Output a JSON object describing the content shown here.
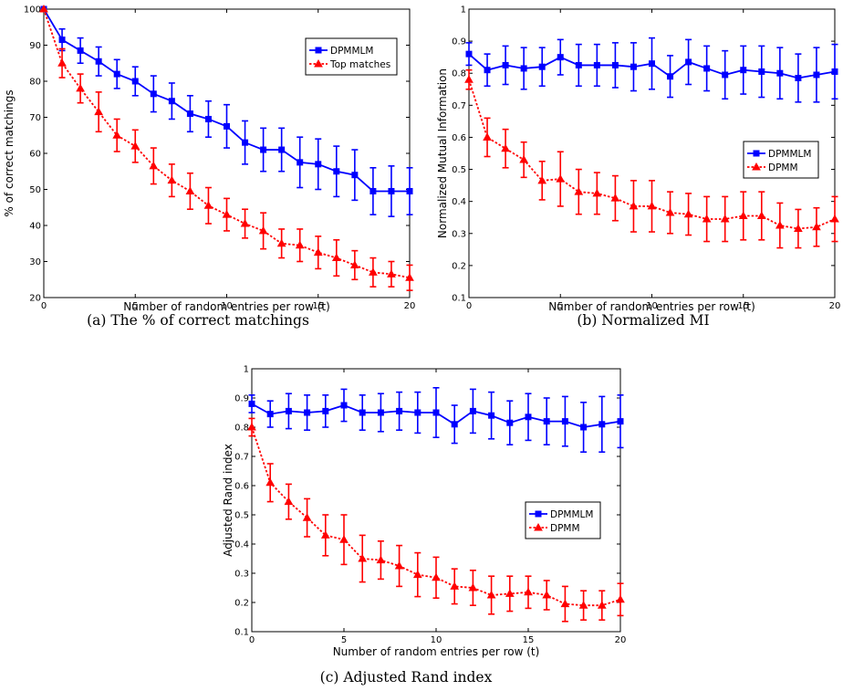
{
  "chart_data": [
    {
      "type": "line",
      "caption": "(a) The % of correct matchings",
      "xlabel": "Number of random entries per row (t)",
      "ylabel": "% of correct matchings",
      "xlim": [
        0,
        20
      ],
      "ylim": [
        20,
        100
      ],
      "xticks": [
        0,
        5,
        10,
        15,
        20
      ],
      "yticks": [
        20,
        30,
        40,
        50,
        60,
        70,
        80,
        90,
        100
      ],
      "legend_position": "top-right",
      "x": [
        0,
        1,
        2,
        3,
        4,
        5,
        6,
        7,
        8,
        9,
        10,
        11,
        12,
        13,
        14,
        15,
        16,
        17,
        18,
        19,
        20
      ],
      "series": [
        {
          "name": "DPMMLM",
          "color": "#0000ff",
          "marker": "square",
          "line": "solid",
          "values": [
            100,
            91.5,
            88.5,
            85.5,
            82,
            80,
            76.5,
            74.5,
            71,
            69.5,
            67.5,
            63,
            61,
            61,
            57.5,
            57,
            55,
            54,
            49.5,
            49.5,
            49.5
          ],
          "errors": [
            0,
            3,
            3.5,
            4,
            4,
            4,
            5,
            5,
            5,
            5,
            6,
            6,
            6,
            6,
            7,
            7,
            7,
            7,
            6.5,
            7,
            6.5
          ]
        },
        {
          "name": "Top matches",
          "color": "#ff0000",
          "marker": "triangle",
          "line": "dotted",
          "values": [
            100,
            85,
            78,
            71.5,
            65,
            62,
            56.5,
            52.5,
            49.5,
            45.5,
            43,
            40.5,
            38.5,
            35,
            34.5,
            32.5,
            31,
            29,
            27,
            26.5,
            25.5
          ],
          "errors": [
            0,
            4,
            4,
            5.5,
            4.5,
            4.5,
            5,
            4.5,
            5,
            5,
            4.5,
            4,
            5,
            4,
            4.5,
            4.5,
            5,
            4,
            4,
            3.5,
            3.5
          ]
        }
      ]
    },
    {
      "type": "line",
      "caption": "(b) Normalized MI",
      "xlabel": "Number of random entries per row (t)",
      "ylabel": "Normalized Mutual Information",
      "xlim": [
        0,
        20
      ],
      "ylim": [
        0.1,
        1
      ],
      "xticks": [
        0,
        5,
        10,
        15,
        20
      ],
      "yticks": [
        0.1,
        0.2,
        0.3,
        0.4,
        0.5,
        0.6,
        0.7,
        0.8,
        0.9,
        1
      ],
      "legend_position": "center-right",
      "x": [
        0,
        1,
        2,
        3,
        4,
        5,
        6,
        7,
        8,
        9,
        10,
        11,
        12,
        13,
        14,
        15,
        16,
        17,
        18,
        19,
        20
      ],
      "series": [
        {
          "name": "DPMMLM",
          "color": "#0000ff",
          "marker": "square",
          "line": "solid",
          "values": [
            0.86,
            0.81,
            0.825,
            0.815,
            0.82,
            0.85,
            0.825,
            0.825,
            0.825,
            0.82,
            0.83,
            0.79,
            0.835,
            0.815,
            0.795,
            0.81,
            0.805,
            0.8,
            0.785,
            0.795,
            0.805
          ],
          "errors": [
            0.035,
            0.05,
            0.06,
            0.065,
            0.06,
            0.055,
            0.065,
            0.065,
            0.07,
            0.075,
            0.08,
            0.065,
            0.07,
            0.07,
            0.075,
            0.075,
            0.08,
            0.08,
            0.075,
            0.085,
            0.085
          ]
        },
        {
          "name": "DPMM",
          "color": "#ff0000",
          "marker": "triangle",
          "line": "dotted",
          "values": [
            0.78,
            0.6,
            0.565,
            0.53,
            0.465,
            0.47,
            0.43,
            0.425,
            0.41,
            0.385,
            0.385,
            0.365,
            0.36,
            0.345,
            0.345,
            0.355,
            0.355,
            0.325,
            0.315,
            0.32,
            0.345
          ],
          "errors": [
            0.03,
            0.06,
            0.06,
            0.055,
            0.06,
            0.085,
            0.07,
            0.065,
            0.07,
            0.08,
            0.08,
            0.065,
            0.065,
            0.07,
            0.07,
            0.075,
            0.075,
            0.07,
            0.06,
            0.06,
            0.07
          ]
        }
      ]
    },
    {
      "type": "line",
      "caption": "(c) Adjusted Rand index",
      "xlabel": "Number of random entries per row (t)",
      "ylabel": "Adjusted Rand index",
      "xlim": [
        0,
        20
      ],
      "ylim": [
        0.1,
        1
      ],
      "xticks": [
        0,
        5,
        10,
        15,
        20
      ],
      "yticks": [
        0.1,
        0.2,
        0.3,
        0.4,
        0.5,
        0.6,
        0.7,
        0.8,
        0.9,
        1
      ],
      "legend_position": "center-right",
      "x": [
        0,
        1,
        2,
        3,
        4,
        5,
        6,
        7,
        8,
        9,
        10,
        11,
        12,
        13,
        14,
        15,
        16,
        17,
        18,
        19,
        20
      ],
      "series": [
        {
          "name": "DPMMLM",
          "color": "#0000ff",
          "marker": "square",
          "line": "solid",
          "values": [
            0.88,
            0.845,
            0.855,
            0.85,
            0.855,
            0.875,
            0.85,
            0.85,
            0.855,
            0.85,
            0.85,
            0.81,
            0.855,
            0.84,
            0.815,
            0.835,
            0.82,
            0.82,
            0.8,
            0.81,
            0.82
          ],
          "errors": [
            0.03,
            0.045,
            0.06,
            0.06,
            0.055,
            0.055,
            0.06,
            0.065,
            0.065,
            0.07,
            0.085,
            0.065,
            0.075,
            0.08,
            0.075,
            0.08,
            0.08,
            0.085,
            0.085,
            0.095,
            0.09
          ]
        },
        {
          "name": "DPMM",
          "color": "#ff0000",
          "marker": "triangle",
          "line": "dotted",
          "values": [
            0.8,
            0.61,
            0.545,
            0.49,
            0.43,
            0.415,
            0.35,
            0.345,
            0.325,
            0.295,
            0.285,
            0.255,
            0.25,
            0.225,
            0.23,
            0.235,
            0.225,
            0.195,
            0.19,
            0.19,
            0.21
          ],
          "errors": [
            0.03,
            0.065,
            0.06,
            0.065,
            0.07,
            0.085,
            0.08,
            0.065,
            0.07,
            0.075,
            0.07,
            0.06,
            0.06,
            0.065,
            0.06,
            0.055,
            0.05,
            0.06,
            0.05,
            0.05,
            0.055
          ]
        }
      ]
    }
  ]
}
